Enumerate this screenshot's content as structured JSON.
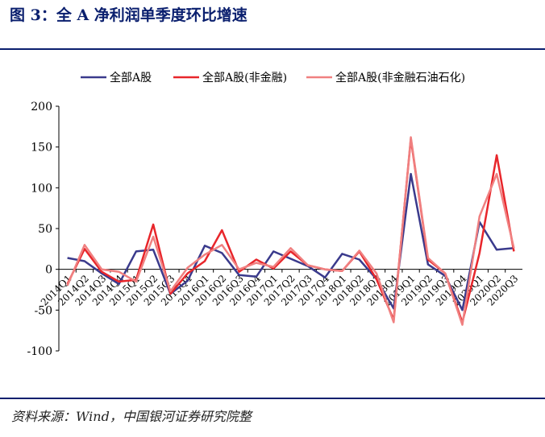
{
  "figure": {
    "title": "图 3：全 A 净利润单季度环比增速",
    "source": "资料来源：Wind，中国银河证券研究院整"
  },
  "chart_data": {
    "type": "line",
    "title": "",
    "xlabel": "",
    "ylabel": "",
    "ylim": [
      -100,
      200
    ],
    "yticks": [
      -100,
      -50,
      0,
      50,
      100,
      150,
      200
    ],
    "grid": false,
    "legend_position": "top",
    "categories": [
      "2014Q1",
      "2014Q2",
      "2014Q3",
      "2014Q4",
      "2015Q1",
      "2015Q2",
      "2015Q3",
      "2015Q4",
      "2016Q1",
      "2016Q2",
      "2016Q3",
      "2016Q4",
      "2017Q1",
      "2017Q2",
      "2017Q3",
      "2017Q4",
      "2018Q1",
      "2018Q2",
      "2018Q3",
      "2018Q4",
      "2019Q1",
      "2019Q2",
      "2019Q3",
      "2019Q4",
      "2020Q1",
      "2020Q2",
      "2020Q3"
    ],
    "series": [
      {
        "name": "全部A股",
        "color": "#3a3a8c",
        "values": [
          14,
          10,
          -5,
          -18,
          22,
          24,
          -30,
          -14,
          29,
          20,
          -7,
          -9,
          22,
          13,
          4,
          -10,
          19,
          12,
          -12,
          -48,
          117,
          6,
          -8,
          -50,
          58,
          24,
          26
        ]
      },
      {
        "name": "全部A股(非金融)",
        "color": "#e8262b",
        "values": [
          -18,
          25,
          -3,
          -15,
          -13,
          55,
          -30,
          -5,
          10,
          48,
          -3,
          12,
          1,
          22,
          5,
          0,
          -2,
          22,
          -12,
          -62,
          160,
          12,
          -5,
          -65,
          20,
          140,
          22
        ]
      },
      {
        "name": "全部A股(非金融石油石化)",
        "color": "#f08080",
        "values": [
          -20,
          30,
          0,
          -3,
          -15,
          40,
          -27,
          2,
          18,
          30,
          0,
          8,
          3,
          26,
          5,
          0,
          -2,
          23,
          -5,
          -65,
          162,
          14,
          -5,
          -68,
          65,
          117,
          26
        ]
      }
    ]
  }
}
